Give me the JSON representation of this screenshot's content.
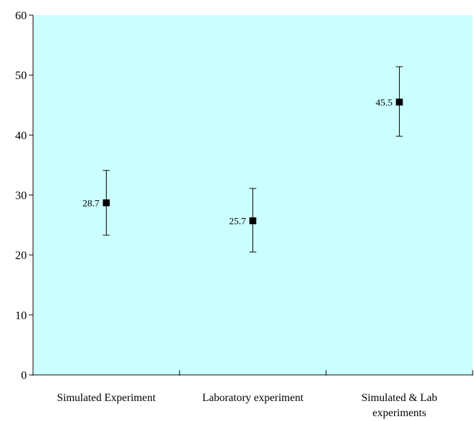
{
  "chart_data": {
    "type": "scatter",
    "title": "",
    "xlabel": "",
    "ylabel": "",
    "categories": [
      "Simulated Experiment",
      "Laboratory experiment",
      "Simulated & Lab experiments"
    ],
    "category_lines": [
      [
        "Simulated Experiment"
      ],
      [
        "Laboratory experiment"
      ],
      [
        "Simulated & Lab",
        "experiments"
      ]
    ],
    "series": [
      {
        "values": [
          28.7,
          25.7,
          45.5
        ],
        "error_low": [
          23.3,
          20.5,
          39.8
        ],
        "error_high": [
          34.1,
          31.1,
          51.4
        ],
        "data_labels": [
          "28.7",
          "25.7",
          "45.5"
        ]
      }
    ],
    "ylim": [
      0,
      60
    ],
    "yticks": [
      0,
      10,
      20,
      30,
      40,
      50,
      60
    ],
    "ytick_labels": [
      "0",
      "10",
      "20",
      "30",
      "40",
      "50",
      "60"
    ],
    "grid": false,
    "legend": "none",
    "colors": {
      "plot_background": "#ccffff",
      "marker": "#000000",
      "axis": "#000000"
    }
  }
}
